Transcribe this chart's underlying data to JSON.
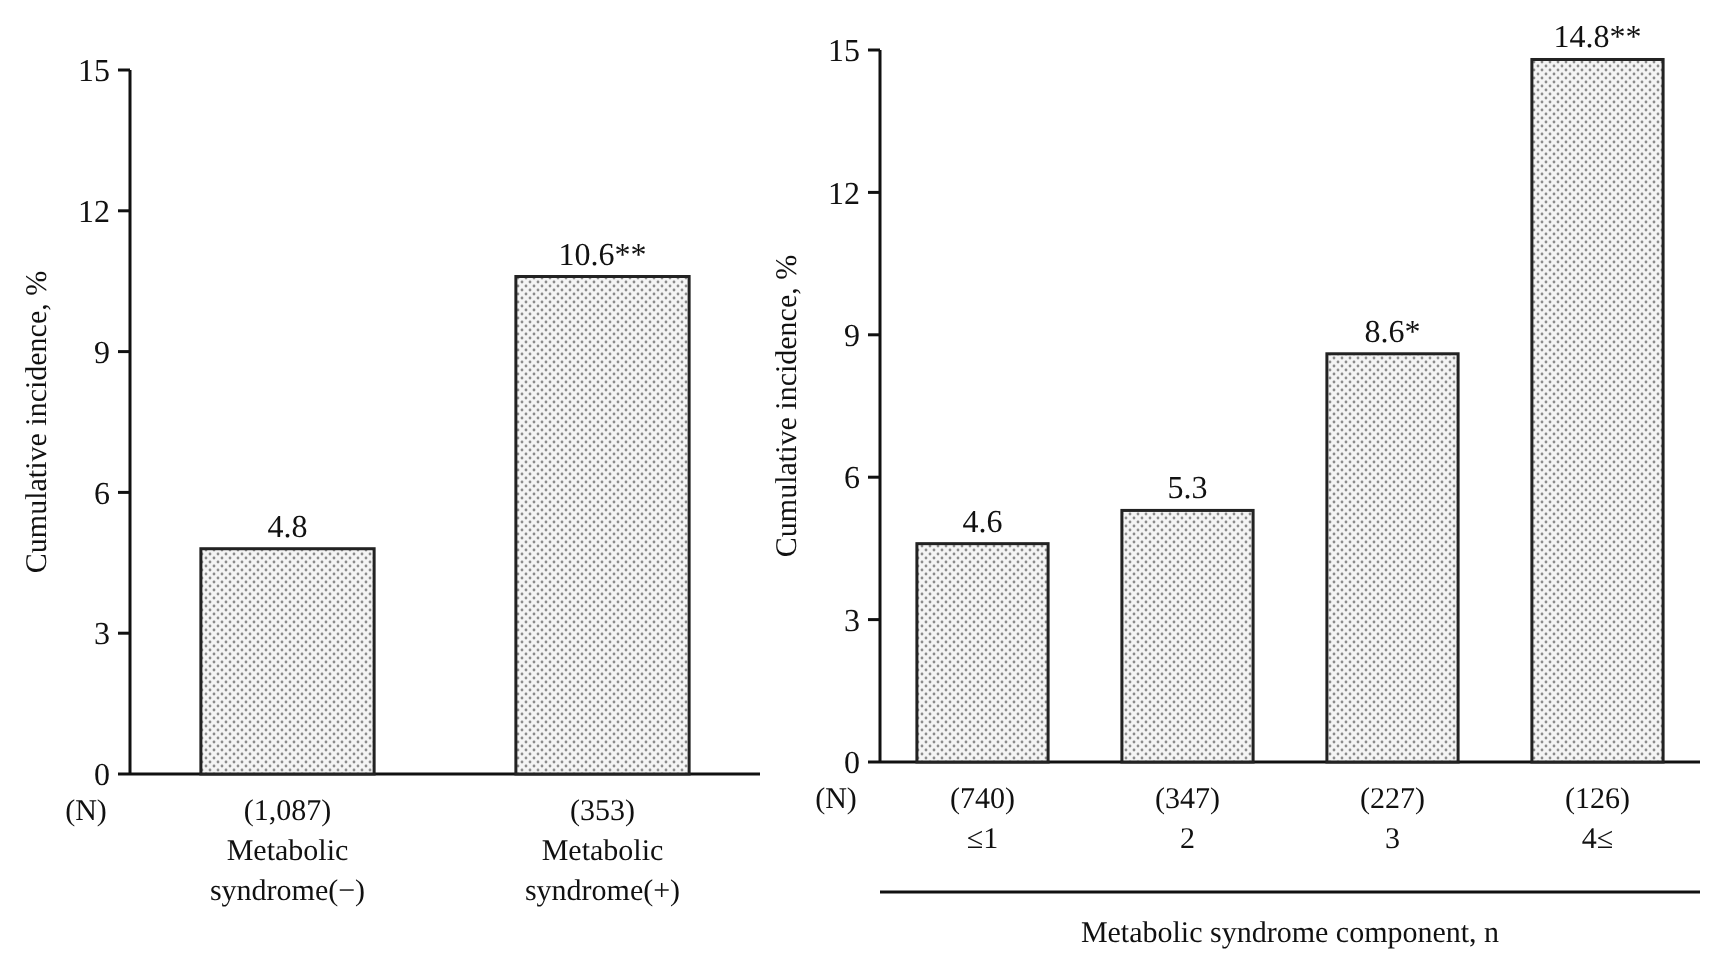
{
  "chart_data": [
    {
      "type": "bar",
      "categories": [
        "(1,087)\n\nMetabolic\nsyndrome(−)",
        "(353)\n\nMetabolic\nsyndrome(+)"
      ],
      "values": [
        4.8,
        10.6
      ],
      "value_labels": [
        "4.8",
        "10.6**"
      ],
      "color": "#222222",
      "ylabel": "Cumulative incidence, %",
      "ylim": [
        0,
        15
      ],
      "yticks": [
        0,
        3,
        6,
        9,
        12,
        15
      ],
      "annotations": [
        "(N)"
      ]
    },
    {
      "type": "bar",
      "categories": [
        "(740)\n≤1",
        "(347)\n2",
        "(227)\n3",
        "(126)\n4≤"
      ],
      "values": [
        4.6,
        5.3,
        8.6,
        14.8
      ],
      "value_labels": [
        "4.6",
        "5.3",
        "8.6*",
        "14.8**"
      ],
      "color": "#222222",
      "ylabel": "Cumulative incidence, %",
      "xlabel": "Metabolic syndrome component, n",
      "ylim": [
        0,
        15
      ],
      "yticks": [
        0,
        3,
        6,
        9,
        12,
        15
      ],
      "annotations": [
        "(N)"
      ]
    }
  ]
}
